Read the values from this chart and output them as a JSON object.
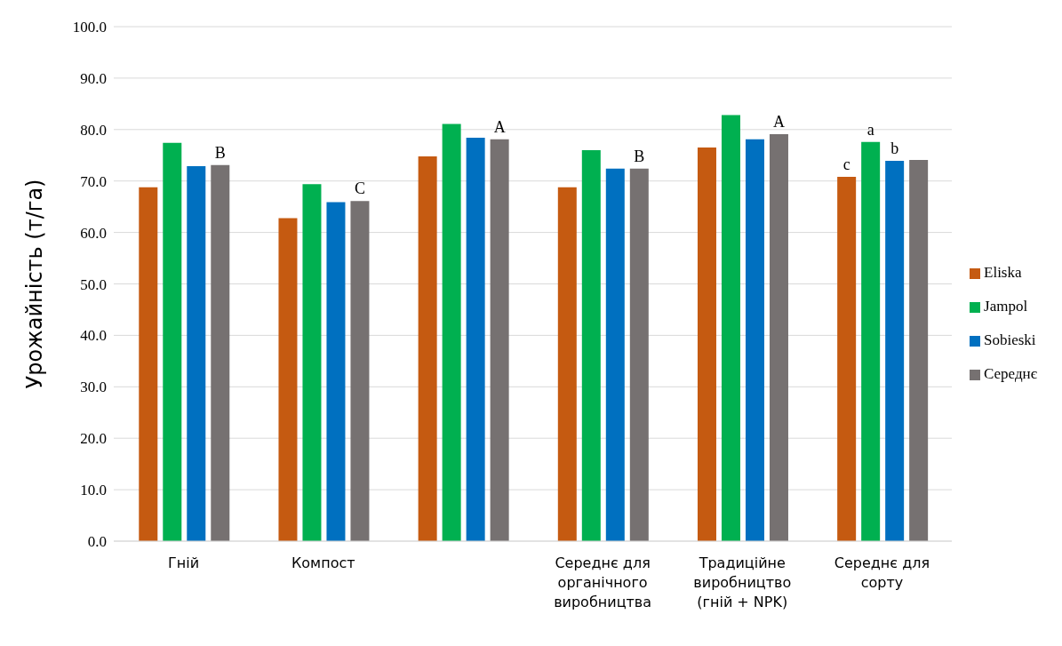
{
  "chart_data": {
    "type": "bar",
    "ylabel": "Урожайність (т/га)",
    "categories": [
      "Гній",
      "Компост",
      null,
      "Середнє для органічного виробництва",
      "Традиційне виробництво (гній + NPK)",
      "Середнє для сорту"
    ],
    "series": [
      {
        "name": "Eliska",
        "color": "#c55a11",
        "values": [
          68.8,
          62.8,
          74.8,
          68.8,
          76.5,
          70.8
        ],
        "value_labels": [
          null,
          null,
          null,
          null,
          null,
          "c"
        ]
      },
      {
        "name": "Jampol",
        "color": "#00b050",
        "values": [
          77.4,
          69.4,
          81.1,
          76.0,
          82.8,
          77.6
        ],
        "value_labels": [
          null,
          null,
          null,
          null,
          null,
          "a"
        ]
      },
      {
        "name": "Sobieski",
        "color": "#0070c0",
        "values": [
          72.9,
          65.9,
          78.4,
          72.4,
          78.1,
          73.9
        ],
        "value_labels": [
          null,
          null,
          null,
          null,
          null,
          "b"
        ]
      },
      {
        "name": "Середнє",
        "color": "#767171",
        "values": [
          73.1,
          66.1,
          78.1,
          72.4,
          79.1,
          74.1
        ],
        "value_labels": [
          "B",
          "C",
          "A",
          "B",
          "A",
          null
        ]
      }
    ],
    "ylim": [
      0,
      100
    ],
    "yticks": [
      {
        "value": 0,
        "label": "0.0"
      },
      {
        "value": 10,
        "label": "10.0"
      },
      {
        "value": 20,
        "label": "20.0"
      },
      {
        "value": 30,
        "label": "30.0"
      },
      {
        "value": 40,
        "label": "40.0"
      },
      {
        "value": 50,
        "label": "50.0"
      },
      {
        "value": 60,
        "label": "60.0"
      },
      {
        "value": 70,
        "label": "70.0"
      },
      {
        "value": 80,
        "label": "80.0"
      },
      {
        "value": 90,
        "label": "90.0"
      },
      {
        "value": 100,
        "label": "100.0"
      }
    ],
    "grid": "y",
    "legend": "right"
  }
}
